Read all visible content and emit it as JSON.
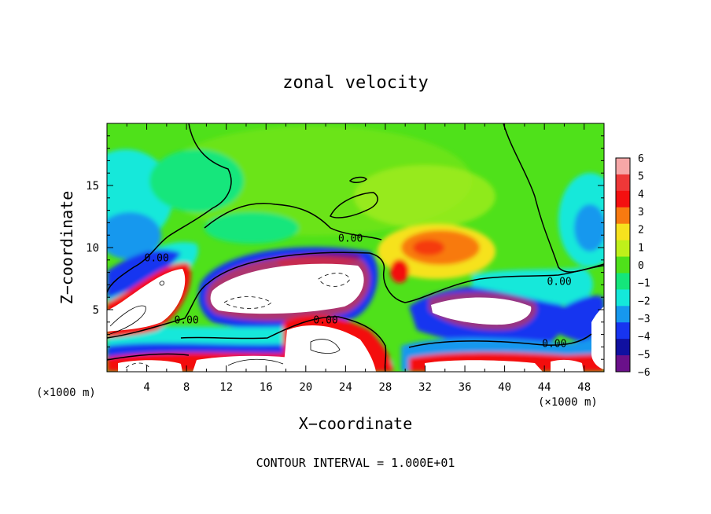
{
  "chart_data": {
    "type": "heatmap",
    "title": "zonal velocity",
    "xlabel": "X−coordinate",
    "ylabel": "Z−coordinate",
    "x_unit": "(×1000 m)",
    "z_unit": "(×1000 m)",
    "footnote": "CONTOUR INTERVAL = 1.000E+01",
    "xlim": [
      0,
      50
    ],
    "ylim": [
      0,
      20
    ],
    "x_ticks": [
      4,
      8,
      12,
      16,
      20,
      24,
      28,
      32,
      36,
      40,
      44,
      48
    ],
    "y_ticks": [
      5,
      10,
      15
    ],
    "colorbar": {
      "ticks": [
        6,
        5,
        4,
        3,
        2,
        1,
        0,
        -1,
        -2,
        -3,
        -4,
        -5,
        -6
      ],
      "levels": [
        {
          "value": 6,
          "color": "#f6a7a7"
        },
        {
          "value": 5,
          "color": "#ee3838"
        },
        {
          "value": 4,
          "color": "#f41010"
        },
        {
          "value": 3,
          "color": "#f87a10"
        },
        {
          "value": 2,
          "color": "#f6e21e"
        },
        {
          "value": 1,
          "color": "#bff01a"
        },
        {
          "value": 0,
          "color": "#4fe11a"
        },
        {
          "value": -1,
          "color": "#14e67b"
        },
        {
          "value": -2,
          "color": "#14e8da"
        },
        {
          "value": -3,
          "color": "#1698ee"
        },
        {
          "value": -4,
          "color": "#1734f0"
        },
        {
          "value": -5,
          "color": "#1010a0"
        },
        {
          "value": -6,
          "color": "#6a108a"
        }
      ]
    },
    "contour_labels": [
      {
        "text": "0.00",
        "x": 5,
        "z": 9.2
      },
      {
        "text": "0.00",
        "x": 24.5,
        "z": 10.8
      },
      {
        "text": "0.00",
        "x": 8,
        "z": 4.2
      },
      {
        "text": "0.00",
        "x": 22,
        "z": 4.2
      },
      {
        "text": "0.00",
        "x": 45.5,
        "z": 7.3
      },
      {
        "text": "0.00",
        "x": 45,
        "z": 2.3
      }
    ]
  }
}
